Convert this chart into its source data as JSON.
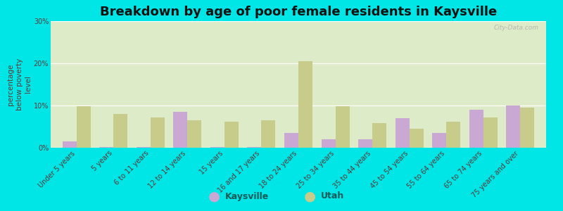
{
  "title": "Breakdown by age of poor female residents in Kaysville",
  "ylabel": "percentage\nbelow poverty\nlevel",
  "categories": [
    "Under 5 years",
    "5 years",
    "6 to 11 years",
    "12 to 14 years",
    "15 years",
    "16 and 17 years",
    "18 to 24 years",
    "25 to 34 years",
    "35 to 44 years",
    "45 to 54 years",
    "55 to 64 years",
    "65 to 74 years",
    "75 years and over"
  ],
  "kaysville": [
    1.5,
    0.2,
    0.2,
    8.5,
    0.2,
    0.2,
    3.5,
    2.0,
    2.0,
    7.0,
    3.5,
    9.0,
    10.0
  ],
  "utah": [
    9.8,
    8.0,
    7.2,
    6.5,
    6.2,
    6.5,
    20.5,
    9.8,
    5.8,
    4.5,
    6.2,
    7.2,
    9.5
  ],
  "kaysville_color": "#c9a8d4",
  "utah_color": "#c8cc8a",
  "background_outer": "#00e5e5",
  "background_plot": "#deebc8",
  "ylim": [
    0,
    30
  ],
  "yticks": [
    0,
    10,
    20,
    30
  ],
  "ytick_labels": [
    "0%",
    "10%",
    "20%",
    "30%"
  ],
  "title_fontsize": 13,
  "axis_label_fontsize": 7.5,
  "tick_fontsize": 7.0,
  "legend_fontsize": 9,
  "bar_width": 0.38,
  "watermark": "City-Data.com",
  "text_color": "#5a3a3a",
  "legend_text_color": "#1a5a5a"
}
